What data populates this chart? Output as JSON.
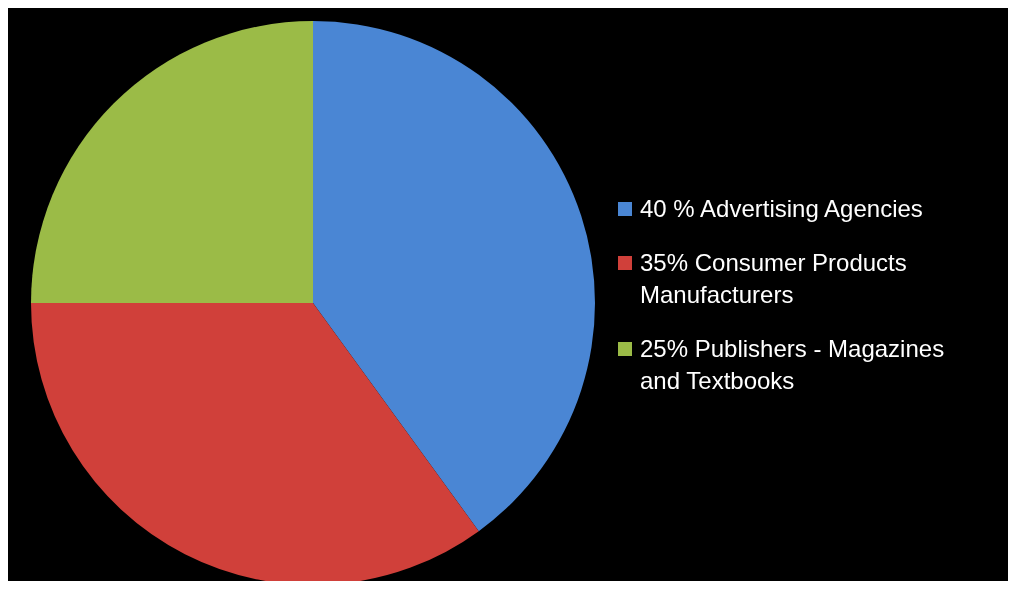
{
  "chart_data": {
    "type": "pie",
    "categories": [
      "40 % Advertising Agencies",
      "35% Consumer Products Manufacturers",
      "25% Publishers - Magazines and Textbooks"
    ],
    "values": [
      40,
      35,
      25
    ],
    "colors": [
      "#4a86d4",
      "#d0403a",
      "#9bbb47"
    ],
    "legend": "right"
  }
}
